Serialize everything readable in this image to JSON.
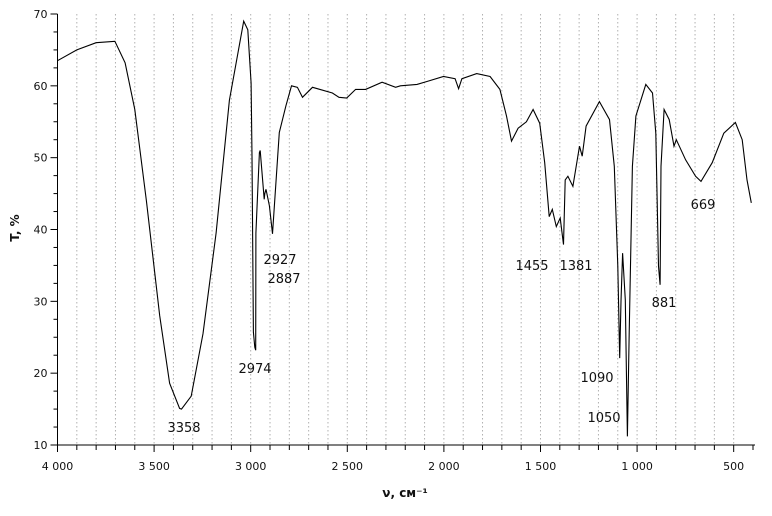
{
  "chart_data": {
    "type": "line",
    "title": "",
    "xlabel": "ν, см⁻¹",
    "ylabel": "T, %",
    "xlim": [
      4000,
      400
    ],
    "ylim": [
      10,
      70
    ],
    "x_reversed": true,
    "xticks": [
      4000,
      3500,
      3000,
      2500,
      2000,
      1500,
      1000,
      500
    ],
    "xtick_labels": [
      "4 000",
      "3 500",
      "3 000",
      "2 500",
      "2 000",
      "1 500",
      "1 000",
      "500"
    ],
    "yticks": [
      10,
      20,
      30,
      40,
      50,
      60,
      70
    ],
    "ytick_labels": [
      "10",
      "20",
      "30",
      "40",
      "50",
      "60",
      "70"
    ],
    "grid": "vertical dotted every 100",
    "line_color": "#000000",
    "grid_color": "#b0b0b0",
    "series": [
      {
        "x": [
          4000,
          3900,
          3800,
          3703,
          3650,
          3600,
          3540,
          3471,
          3420,
          3368,
          3358,
          3308,
          3247,
          3179,
          3110,
          3036,
          3015,
          2998,
          2993,
          2986,
          2979,
          2974,
          2973,
          2955,
          2951,
          2930,
          2927,
          2921,
          2903,
          2887,
          2852,
          2818,
          2789,
          2758,
          2732,
          2680,
          2577,
          2543,
          2503,
          2457,
          2405,
          2320,
          2250,
          2225,
          2139,
          2088,
          2002,
          1942,
          1924,
          1907,
          1830,
          1761,
          1710,
          1676,
          1650,
          1616,
          1573,
          1538,
          1504,
          1478,
          1455,
          1439,
          1418,
          1398,
          1381,
          1372,
          1358,
          1332,
          1298,
          1284,
          1264,
          1195,
          1143,
          1118,
          1100,
          1090,
          1083,
          1075,
          1061,
          1050,
          1041,
          1024,
          1006,
          955,
          920,
          903,
          889,
          881,
          876,
          860,
          834,
          809,
          797,
          749,
          697,
          669,
          611,
          551,
          491,
          456,
          431,
          409
        ],
        "y": [
          63.5,
          65,
          66,
          66.2,
          63.2,
          56.7,
          44,
          28,
          18.6,
          15.1,
          15,
          16.8,
          25.5,
          39.5,
          58,
          69,
          67.8,
          60.4,
          50.2,
          25.7,
          23.6,
          23.2,
          39.5,
          50.7,
          51,
          44.2,
          45,
          45.6,
          43.3,
          39.4,
          53.5,
          57.2,
          60,
          59.8,
          58.4,
          59.8,
          59,
          58.4,
          58.3,
          59.5,
          59.5,
          60.5,
          59.8,
          60,
          60.2,
          60.6,
          61.3,
          61,
          59.6,
          61,
          61.7,
          61.3,
          59.5,
          55.8,
          52.3,
          54.1,
          55,
          56.7,
          54.8,
          49.3,
          41.8,
          42.8,
          40.4,
          41.6,
          37.9,
          46.9,
          47.4,
          46,
          51.6,
          50.2,
          54.4,
          57.8,
          55.3,
          48.8,
          34.9,
          22.1,
          30,
          36.7,
          30.2,
          11.2,
          25.6,
          48.8,
          55.8,
          60.2,
          59,
          53.4,
          34.9,
          32.3,
          48.8,
          56.7,
          55.3,
          51.6,
          52.5,
          49.7,
          47.4,
          46.7,
          49.3,
          53.4,
          54.9,
          52.5,
          46.9,
          43.7
        ]
      }
    ],
    "annotations": [
      {
        "x": 3358,
        "text": "3358"
      },
      {
        "x": 2974,
        "text": "2974"
      },
      {
        "x": 2927,
        "text": "2927"
      },
      {
        "x": 2887,
        "text": "2887"
      },
      {
        "x": 1455,
        "text": "1455"
      },
      {
        "x": 1381,
        "text": "1381"
      },
      {
        "x": 1090,
        "text": "1090"
      },
      {
        "x": 1050,
        "text": "1050"
      },
      {
        "x": 881,
        "text": "881"
      },
      {
        "x": 669,
        "text": "669"
      }
    ]
  }
}
